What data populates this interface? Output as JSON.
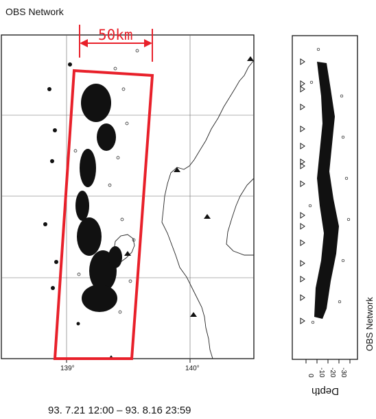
{
  "title": "OBS Network",
  "scale_label": "50km",
  "lon_labels": [
    "139°",
    "140°"
  ],
  "depth_axis": {
    "label": "Depth",
    "ticks": [
      "0",
      "-10",
      "-20",
      "-30"
    ]
  },
  "side_title": "OBS Network",
  "date_range": "93. 7.21 12:00 – 93. 8.16 23:59",
  "colors": {
    "highlight": "#e8202a",
    "ink": "#111111"
  }
}
